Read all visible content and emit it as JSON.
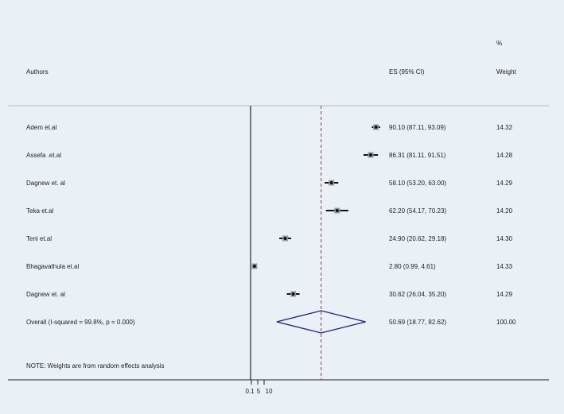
{
  "chart_data": {
    "type": "forest",
    "headers": {
      "authors": "Authors",
      "es": "ES (95% CI)",
      "weight_line1": "%",
      "weight_line2": "Weight"
    },
    "studies": [
      {
        "author": "Adem et.al",
        "es": 90.1,
        "lo": 87.11,
        "hi": 93.09,
        "es_label": "90.10 (87.11, 93.09)",
        "weight": "14.32"
      },
      {
        "author": "Assefa .et.al",
        "es": 86.31,
        "lo": 81.11,
        "hi": 91.51,
        "es_label": "86.31 (81.11, 91.51)",
        "weight": "14.28"
      },
      {
        "author": "Dagnew et. al",
        "es": 58.1,
        "lo": 53.2,
        "hi": 63.0,
        "es_label": "58.10 (53.20, 63.00)",
        "weight": "14.29"
      },
      {
        "author": "Teka  et.al",
        "es": 62.2,
        "lo": 54.17,
        "hi": 70.23,
        "es_label": "62.20 (54.17, 70.23)",
        "weight": "14.20"
      },
      {
        "author": "Teni et.al",
        "es": 24.9,
        "lo": 20.62,
        "hi": 29.18,
        "es_label": "24.90 (20.62, 29.18)",
        "weight": "14.30"
      },
      {
        "author": "Bhagavathula et.al",
        "es": 2.8,
        "lo": 0.99,
        "hi": 4.61,
        "es_label": "2.80 (0.99, 4.61)",
        "weight": "14.33"
      },
      {
        "author": "Dagnew et. al",
        "es": 30.62,
        "lo": 26.04,
        "hi": 35.2,
        "es_label": "30.62 (26.04, 35.20)",
        "weight": "14.29"
      }
    ],
    "overall": {
      "label": "Overall  (I-squared = 99.8%, p = 0.000)",
      "es": 50.69,
      "lo": 18.77,
      "hi": 82.62,
      "es_label": "50.69 (18.77, 82.62)",
      "weight": "100.00"
    },
    "note": "NOTE: Weights are from random effects analysis",
    "x_ticks": [
      {
        "value": 0.1,
        "label": "0.1"
      },
      {
        "value": 5,
        "label": "5"
      },
      {
        "value": 10,
        "label": "10"
      }
    ],
    "null_line": 0,
    "colors": {
      "background": "#e9f0f6",
      "diamond": "#1a237e",
      "overall_line": "#c62828",
      "marker": "#111111"
    }
  }
}
